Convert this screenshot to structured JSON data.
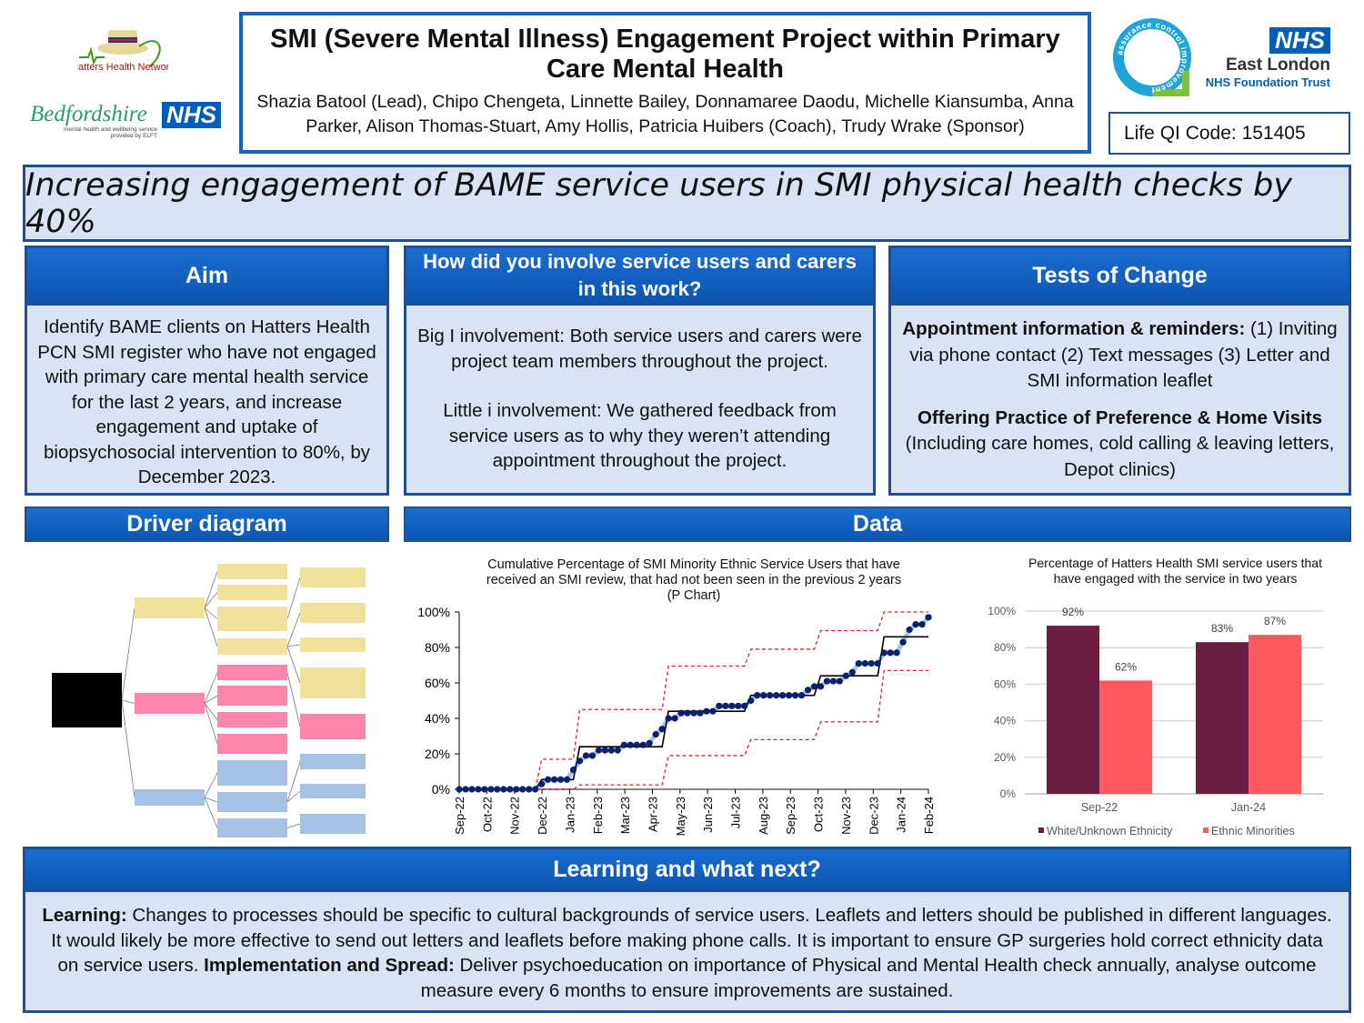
{
  "logos": {
    "hatters": "Hatters Health Network",
    "bedfordshire": "Bedfordshire",
    "bedfordshire_sub1": "mental health and wellbeing service",
    "bedfordshire_sub2": "provided by ELFT",
    "nhs": "NHS",
    "qi_ring": "assurance control improvement",
    "elft_nhs": "NHS",
    "elft_name": "East London",
    "elft_trust": "NHS Foundation Trust"
  },
  "header": {
    "title": "SMI (Severe Mental Illness) Engagement Project within Primary Care Mental Health",
    "authors": "Shazia Batool (Lead), Chipo Chengeta, Linnette Bailey, Donnamaree Daodu, Michelle Kiansumba, Anna Parker, Alison Thomas-Stuart, Amy Hollis, Patricia Huibers (Coach), Trudy Wrake (Sponsor)",
    "qi_code": "Life QI Code: 151405"
  },
  "banner": "Increasing engagement of BAME service users in SMI physical health checks by 40%",
  "aim": {
    "heading": "Aim",
    "text": "Identify BAME clients on Hatters Health PCN SMI register who have not engaged with primary care mental health service for the last 2 years, and increase engagement and uptake of biopsychosocial intervention to 80%, by December 2023."
  },
  "involve": {
    "heading": "How did you involve service users and carers in this work?",
    "p1": "Big I involvement: Both service users and carers were project team members throughout the project.",
    "p2": "Little i involvement: We gathered feedback from service users as to why they weren’t attending appointment throughout the project."
  },
  "tests": {
    "heading": "Tests of Change",
    "b1": "Appointment information & reminders:",
    "t1": " (1) Inviting via phone contact (2) Text messages (3) Letter and SMI information leaflet",
    "b2": "Offering Practice of Preference & Home Visits",
    "t2": "(Including care homes, cold calling & leaving letters, Depot clinics)"
  },
  "driver": {
    "heading": "Driver diagram"
  },
  "data_section": {
    "heading": "Data"
  },
  "chart_data": [
    {
      "type": "line",
      "title": "Cumulative Percentage of SMI Minority Ethnic Service Users that have received an SMI review, that had not been seen in the previous 2 years (P Chart)",
      "ylim": [
        0,
        100
      ],
      "yticks": [
        "0%",
        "20%",
        "40%",
        "60%",
        "80%",
        "100%"
      ],
      "xticks": [
        "Sep-22",
        "Oct-22",
        "Nov-22",
        "Dec-22",
        "Jan-23",
        "Feb-23",
        "Mar-23",
        "Apr-23",
        "May-23",
        "Jun-23",
        "Jul-23",
        "Aug-23",
        "Sep-23",
        "Oct-23",
        "Nov-23",
        "Dec-23",
        "Jan-24",
        "Feb-24"
      ],
      "x": [
        "2022-09-01",
        "2022-09-08",
        "2022-09-15",
        "2022-09-22",
        "2022-09-29",
        "2022-10-06",
        "2022-10-13",
        "2022-10-20",
        "2022-10-27",
        "2022-11-03",
        "2022-11-10",
        "2022-11-17",
        "2022-11-24",
        "2022-12-01",
        "2022-12-08",
        "2022-12-15",
        "2022-12-22",
        "2022-12-29",
        "2023-01-05",
        "2023-01-12",
        "2023-01-19",
        "2023-01-26",
        "2023-02-02",
        "2023-02-09",
        "2023-02-16",
        "2023-02-23",
        "2023-03-02",
        "2023-03-09",
        "2023-03-16",
        "2023-03-23",
        "2023-03-30",
        "2023-04-06",
        "2023-04-13",
        "2023-04-20",
        "2023-04-27",
        "2023-05-04",
        "2023-05-11",
        "2023-05-18",
        "2023-05-25",
        "2023-06-01",
        "2023-06-08",
        "2023-06-15",
        "2023-06-22",
        "2023-06-29",
        "2023-07-06",
        "2023-07-13",
        "2023-07-20",
        "2023-07-27",
        "2023-08-03",
        "2023-08-10",
        "2023-08-17",
        "2023-08-24",
        "2023-08-31",
        "2023-09-07",
        "2023-09-14",
        "2023-09-21",
        "2023-09-28",
        "2023-10-05",
        "2023-10-12",
        "2023-10-19",
        "2023-10-26",
        "2023-11-02",
        "2023-11-09",
        "2023-11-16",
        "2023-11-23",
        "2023-11-30",
        "2023-12-07",
        "2023-12-14",
        "2023-12-21",
        "2023-12-28",
        "2024-01-04",
        "2024-01-11",
        "2024-01-18",
        "2024-01-25",
        "2024-02-01"
      ],
      "values": [
        0,
        0,
        0,
        0,
        0,
        0,
        0,
        0,
        0,
        0,
        0,
        0,
        0,
        3,
        5.5,
        5.5,
        5.5,
        5.5,
        11,
        16,
        19,
        19,
        22,
        22,
        22,
        22,
        25,
        25,
        25,
        25,
        26,
        31,
        34,
        40,
        40,
        43,
        43,
        43,
        43,
        44,
        44,
        47,
        47,
        47,
        47,
        47,
        50,
        53,
        53,
        53,
        53,
        53,
        53,
        53,
        53,
        56,
        58,
        58,
        61,
        61,
        61,
        64,
        66,
        71,
        71,
        71,
        71,
        77,
        77,
        77,
        83,
        90,
        93,
        93,
        97
      ],
      "control_limits": [
        {
          "from": "2022-09-01",
          "to": "2022-11-24",
          "cl": 0,
          "ucl": 0,
          "lcl": 0
        },
        {
          "from": "2022-12-01",
          "to": "2023-01-05",
          "cl": 5.5,
          "ucl": 17,
          "lcl": 0
        },
        {
          "from": "2023-01-12",
          "to": "2023-04-13",
          "cl": 24,
          "ucl": 45,
          "lcl": 2.5
        },
        {
          "from": "2023-04-20",
          "to": "2023-07-13",
          "cl": 44,
          "ucl": 69.5,
          "lcl": 19
        },
        {
          "from": "2023-07-20",
          "to": "2023-09-28",
          "cl": 53,
          "ucl": 79,
          "lcl": 28
        },
        {
          "from": "2023-10-05",
          "to": "2023-12-07",
          "cl": 64,
          "ucl": 89.5,
          "lcl": 38
        },
        {
          "from": "2023-12-14",
          "to": "2024-02-01",
          "cl": 86,
          "ucl": 100,
          "lcl": 67
        }
      ],
      "colors": {
        "points": "#0b1f6b",
        "line": "#9dc8f0",
        "cl": "#000000",
        "limits": "#e02020"
      }
    },
    {
      "type": "bar",
      "title": "Percentage of Hatters Health SMI service users that have engaged with the service in two years",
      "categories": [
        "Sep-22",
        "Jan-24"
      ],
      "series": [
        {
          "name": "White/Unknown Ethnicity",
          "values": [
            92,
            83
          ],
          "color": "#6b1d42"
        },
        {
          "name": "Ethnic Minorities",
          "values": [
            62,
            87
          ],
          "color": "#ff5a5f"
        }
      ],
      "data_labels": [
        [
          "92%",
          "83%"
        ],
        [
          "62%",
          "87%"
        ]
      ],
      "ylim": [
        0,
        100
      ],
      "yticks": [
        "0%",
        "20%",
        "40%",
        "60%",
        "80%",
        "100%"
      ],
      "grid": true,
      "legend": "bottom"
    }
  ],
  "learning": {
    "heading": "Learning and what next?",
    "b1": "Learning:",
    "t1": " Changes to processes should be specific to cultural backgrounds of service users. Leaflets and letters should be published in different languages. It would likely be more effective to send out letters and leaflets before making phone calls. It is important to ensure GP surgeries hold correct ethnicity data on service users. ",
    "b2": "Implementation and Spread:",
    "t2": " Deliver psychoeducation on importance of Physical and Mental Health check annually, analyse outcome measure every 6 months to ensure improvements are sustained."
  }
}
